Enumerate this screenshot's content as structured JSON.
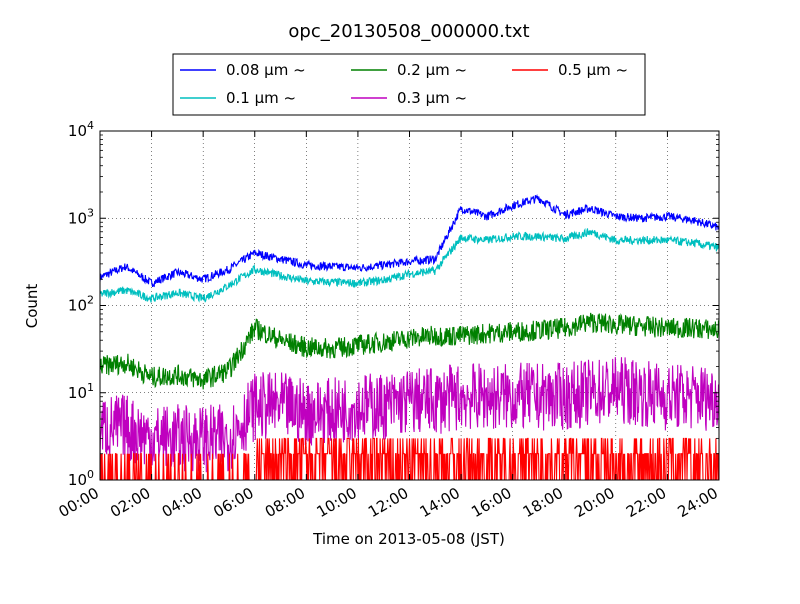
{
  "chart_data": {
    "type": "line",
    "title": "opc_20130508_000000.txt",
    "xlabel": "Time on 2013-05-08 (JST)",
    "ylabel": "Count",
    "yscale": "log",
    "ylim": [
      1,
      10000
    ],
    "xlim": [
      "00:00",
      "24:00"
    ],
    "grid": true,
    "legend_position": "top-center",
    "x_ticks": [
      "00:00",
      "02:00",
      "04:00",
      "06:00",
      "08:00",
      "10:00",
      "12:00",
      "14:00",
      "16:00",
      "18:00",
      "20:00",
      "22:00",
      "24:00"
    ],
    "y_ticks": [
      {
        "base": "10",
        "exp": "0"
      },
      {
        "base": "10",
        "exp": "1"
      },
      {
        "base": "10",
        "exp": "2"
      },
      {
        "base": "10",
        "exp": "3"
      },
      {
        "base": "10",
        "exp": "4"
      }
    ],
    "x_hours": [
      0,
      1,
      2,
      3,
      4,
      5,
      6,
      7,
      8,
      9,
      10,
      11,
      12,
      13,
      14,
      15,
      16,
      17,
      18,
      19,
      20,
      21,
      22,
      23,
      24
    ],
    "series": [
      {
        "name": "0.08 µm ~",
        "color": "#0000ff",
        "values": [
          210,
          280,
          180,
          240,
          200,
          260,
          400,
          340,
          290,
          280,
          270,
          290,
          320,
          340,
          1300,
          1050,
          1400,
          1700,
          1100,
          1300,
          1050,
          1000,
          1050,
          950,
          780
        ]
      },
      {
        "name": "0.1 µm ~",
        "color": "#00bfbf",
        "values": [
          135,
          150,
          120,
          140,
          120,
          170,
          260,
          220,
          190,
          185,
          180,
          195,
          230,
          250,
          600,
          560,
          620,
          620,
          580,
          700,
          560,
          560,
          560,
          520,
          460
        ]
      },
      {
        "name": "0.2 µm ~",
        "color": "#008000",
        "values": [
          20,
          22,
          15,
          16,
          14,
          18,
          55,
          40,
          33,
          32,
          35,
          38,
          42,
          45,
          45,
          48,
          50,
          52,
          55,
          65,
          60,
          58,
          55,
          55,
          52
        ]
      },
      {
        "name": "0.3 µm ~",
        "color": "#bf00bf",
        "values": [
          4,
          4,
          3,
          3,
          3,
          3,
          7,
          7,
          6,
          6,
          7,
          7,
          8,
          8,
          9,
          9,
          9,
          9,
          9,
          10,
          11,
          10,
          9,
          9,
          9
        ]
      },
      {
        "name": "0.5 µm ~",
        "color": "#ff0000",
        "values": [
          1,
          1,
          1,
          1,
          1,
          1,
          1.5,
          1.5,
          1.5,
          1.5,
          1.5,
          1.5,
          1.5,
          1.5,
          1.5,
          1.5,
          1.5,
          1.5,
          1.5,
          1.5,
          1.5,
          1.5,
          1.5,
          1.5,
          1.5
        ]
      }
    ]
  }
}
